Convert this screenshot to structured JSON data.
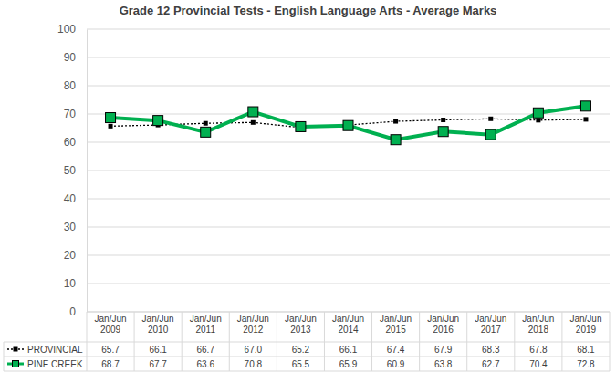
{
  "chart_data": {
    "type": "line",
    "title": "Grade 12 Provincial Tests - English Language Arts - Average Marks",
    "categories": [
      "Jan/Jun 2009",
      "Jan/Jun 2010",
      "Jan/Jun 2011",
      "Jan/Jun 2012",
      "Jan/Jun 2013",
      "Jan/Jun 2014",
      "Jan/Jun 2015",
      "Jan/Jun 2016",
      "Jan/Jun 2017",
      "Jan/Jun 2018",
      "Jan/Jun 2019"
    ],
    "series": [
      {
        "name": "PROVINCIAL",
        "color": "#000000",
        "marker": "square",
        "line_style": "dotted",
        "values": [
          65.7,
          66.1,
          66.7,
          67.0,
          65.2,
          66.1,
          67.4,
          67.9,
          68.3,
          67.8,
          68.1
        ],
        "value_labels": [
          "65.7",
          "66.1",
          "66.7",
          "67.0",
          "65.2",
          "66.1",
          "67.4",
          "67.9",
          "68.3",
          "67.8",
          "68.1"
        ]
      },
      {
        "name": "PINE CREEK",
        "color": "#00b050",
        "marker": "square",
        "line_style": "solid",
        "values": [
          68.7,
          67.7,
          63.6,
          70.8,
          65.5,
          65.9,
          60.9,
          63.8,
          62.7,
          70.4,
          72.8
        ],
        "value_labels": [
          "68.7",
          "67.7",
          "63.6",
          "70.8",
          "65.5",
          "65.9",
          "60.9",
          "63.8",
          "62.7",
          "70.4",
          "72.8"
        ]
      }
    ],
    "ylim": [
      0,
      100
    ],
    "yticks": [
      0,
      10,
      20,
      30,
      40,
      50,
      60,
      70,
      80,
      90,
      100
    ],
    "grid": true
  }
}
